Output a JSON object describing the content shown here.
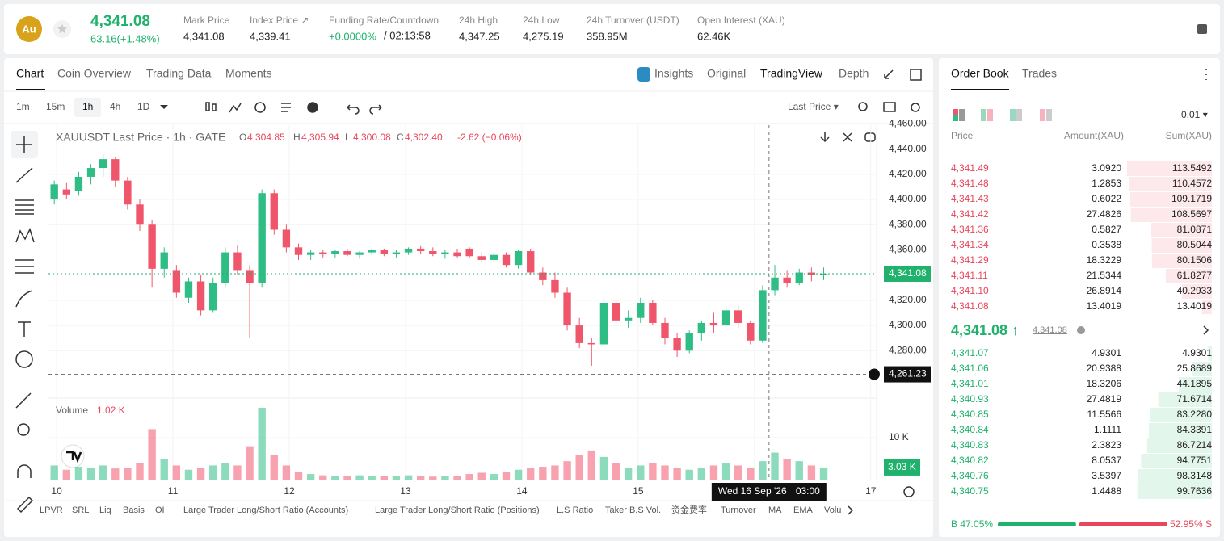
{
  "header": {
    "symbol": "Au",
    "price": "4,341.08",
    "change": "63.16(+1.48%)",
    "stats": [
      {
        "label": "Mark Price",
        "value": "4,341.08"
      },
      {
        "label": "Index Price ↗",
        "value": "4,339.41"
      },
      {
        "label": "Funding Rate/Countdown",
        "value": "+0.0000%",
        "extra": "/ 02:13:58"
      },
      {
        "label": "24h High",
        "value": "4,347.25"
      },
      {
        "label": "24h Low",
        "value": "4,275.19"
      },
      {
        "label": "24h Turnover (USDT)",
        "value": "358.95M"
      },
      {
        "label": "Open Interest (XAU)",
        "value": "62.46K"
      }
    ]
  },
  "tabs": [
    "Chart",
    "Coin Overview",
    "Trading Data",
    "Moments"
  ],
  "views": [
    "Insights",
    "Original",
    "TradingView",
    "Depth"
  ],
  "intervals": [
    "1m",
    "15m",
    "1h",
    "4h",
    "1D"
  ],
  "price_source": "Last Price ▾",
  "chart": {
    "type": "candlestick",
    "legend": "XAUUSDT Last Price · 1h · GATE",
    "ohlc": [
      {
        "key": "O",
        "value": "4,304.85"
      },
      {
        "key": "H",
        "value": "4,305.94"
      },
      {
        "key": "L",
        "value": "4,300.08"
      },
      {
        "key": "C",
        "value": "4,302.40"
      }
    ],
    "change": "-2.62 (−0.06%)",
    "up_color": "#2ebd85",
    "down_color": "#f0566b",
    "xlim": [
      9.93,
      17.05
    ],
    "xticks": [
      {
        "value": 10,
        "label": "10"
      },
      {
        "value": 11,
        "label": "11"
      },
      {
        "value": 12,
        "label": "12"
      },
      {
        "value": 13,
        "label": "13"
      },
      {
        "value": 14,
        "label": "14"
      },
      {
        "value": 15,
        "label": "15"
      },
      {
        "value": 16,
        "label": "16"
      },
      {
        "value": 17,
        "label": "17"
      }
    ],
    "ylim": [
      4243,
      4459
    ],
    "yticks": [
      {
        "value": 4280,
        "label": "4,280.00"
      },
      {
        "value": 4300,
        "label": "4,300.00"
      },
      {
        "value": 4320,
        "label": "4,320.00"
      },
      {
        "value": 4340,
        "label": "4,340.00"
      },
      {
        "value": 4360,
        "label": "4,360.00"
      },
      {
        "value": 4380,
        "label": "4,380.00"
      },
      {
        "value": 4400,
        "label": "4,400.00"
      },
      {
        "value": 4420,
        "label": "4,420.00"
      },
      {
        "value": 4440,
        "label": "4,440.00"
      },
      {
        "value": 4460,
        "label": "4,460.00"
      }
    ],
    "x": [
      9.98,
      10.085,
      10.19,
      10.295,
      10.4,
      10.505,
      10.61,
      10.715,
      10.82,
      10.925,
      11.03,
      11.135,
      11.24,
      11.345,
      11.45,
      11.555,
      11.66,
      11.765,
      11.87,
      11.975,
      12.08,
      12.185,
      12.29,
      12.395,
      12.5,
      12.605,
      12.71,
      12.815,
      12.92,
      13.025,
      13.13,
      13.235,
      13.34,
      13.445,
      13.55,
      13.655,
      13.76,
      13.865,
      13.97,
      14.075,
      14.18,
      14.285,
      14.39,
      14.495,
      14.6,
      14.705,
      14.81,
      14.915,
      15.02,
      15.125,
      15.23,
      15.335,
      15.44,
      15.545,
      15.65,
      15.755,
      15.86,
      15.965,
      16.07,
      16.175,
      16.28,
      16.385,
      16.49,
      16.595
    ],
    "candles": [
      [
        4400,
        4415,
        4396,
        4412
      ],
      [
        4408,
        4413,
        4400,
        4404
      ],
      [
        4407,
        4422,
        4403,
        4418
      ],
      [
        4418,
        4428,
        4412,
        4425
      ],
      [
        4425,
        4436,
        4418,
        4432
      ],
      [
        4432,
        4434,
        4410,
        4415
      ],
      [
        4415,
        4418,
        4392,
        4396
      ],
      [
        4396,
        4400,
        4375,
        4380
      ],
      [
        4380,
        4384,
        4330,
        4345
      ],
      [
        4345,
        4362,
        4338,
        4358
      ],
      [
        4344,
        4348,
        4322,
        4326
      ],
      [
        4322,
        4338,
        4318,
        4335
      ],
      [
        4335,
        4340,
        4308,
        4312
      ],
      [
        4312,
        4338,
        4310,
        4334
      ],
      [
        4334,
        4362,
        4330,
        4358
      ],
      [
        4358,
        4364,
        4340,
        4344
      ],
      [
        4344,
        4348,
        4290,
        4334
      ],
      [
        4334,
        4408,
        4330,
        4405
      ],
      [
        4405,
        4408,
        4372,
        4376
      ],
      [
        4376,
        4380,
        4358,
        4362
      ],
      [
        4362,
        4365,
        4352,
        4356
      ],
      [
        4356,
        4360,
        4352,
        4358
      ],
      [
        4358,
        4360,
        4354,
        4357
      ],
      [
        4357,
        4360,
        4354,
        4359
      ],
      [
        4359,
        4361,
        4355,
        4356
      ],
      [
        4356,
        4359,
        4353,
        4358
      ],
      [
        4358,
        4361,
        4356,
        4360
      ],
      [
        4360,
        4361,
        4355,
        4357
      ],
      [
        4357,
        4360,
        4354,
        4358
      ],
      [
        4358,
        4362,
        4356,
        4361
      ],
      [
        4361,
        4363,
        4357,
        4359
      ],
      [
        4359,
        4362,
        4355,
        4357
      ],
      [
        4357,
        4360,
        4353,
        4358
      ],
      [
        4358,
        4361,
        4354,
        4355
      ],
      [
        4361,
        4362,
        4354,
        4355
      ],
      [
        4355,
        4358,
        4350,
        4352
      ],
      [
        4352,
        4358,
        4350,
        4356
      ],
      [
        4356,
        4358,
        4346,
        4348
      ],
      [
        4348,
        4360,
        4345,
        4359
      ],
      [
        4359,
        4361,
        4340,
        4342
      ],
      [
        4342,
        4346,
        4332,
        4336
      ],
      [
        4336,
        4342,
        4322,
        4326
      ],
      [
        4326,
        4330,
        4296,
        4300
      ],
      [
        4300,
        4306,
        4282,
        4286
      ],
      [
        4286,
        4290,
        4268,
        4285
      ],
      [
        4285,
        4322,
        4283,
        4318
      ],
      [
        4318,
        4322,
        4300,
        4304
      ],
      [
        4304,
        4312,
        4298,
        4306
      ],
      [
        4306,
        4322,
        4302,
        4318
      ],
      [
        4318,
        4320,
        4300,
        4302
      ],
      [
        4302,
        4306,
        4285,
        4290
      ],
      [
        4290,
        4294,
        4275,
        4280
      ],
      [
        4280,
        4296,
        4278,
        4294
      ],
      [
        4294,
        4304,
        4288,
        4302
      ],
      [
        4302,
        4310,
        4294,
        4300
      ],
      [
        4300,
        4316,
        4296,
        4312
      ],
      [
        4312,
        4316,
        4298,
        4302
      ],
      [
        4302,
        4304,
        4285,
        4288
      ],
      [
        4288,
        4332,
        4286,
        4328
      ],
      [
        4328,
        4348,
        4324,
        4338
      ],
      [
        4338,
        4344,
        4330,
        4334
      ],
      [
        4334,
        4345,
        4332,
        4342
      ],
      [
        4342,
        4346,
        4335,
        4340
      ],
      [
        4340,
        4346,
        4336,
        4341
      ]
    ],
    "volume_title": "Volume",
    "volume_value": "1.02 K",
    "vlim": [
      0,
      19250
    ],
    "vticks": [
      {
        "value": 10000,
        "label": "10 K"
      }
    ],
    "volumes": [
      3500,
      2500,
      3200,
      3000,
      3500,
      2800,
      3000,
      4000,
      12000,
      5000,
      3500,
      2500,
      3000,
      3500,
      4000,
      3500,
      8000,
      17000,
      6000,
      3500,
      2000,
      1500,
      1200,
      1000,
      1000,
      1200,
      1000,
      1100,
      1000,
      1200,
      1000,
      900,
      1000,
      1100,
      1500,
      1800,
      1500,
      2000,
      2500,
      3000,
      3200,
      3500,
      4500,
      6000,
      7000,
      5500,
      4000,
      3000,
      3500,
      4000,
      3500,
      3000,
      2500,
      3000,
      3500,
      4000,
      3500,
      3000,
      4500,
      6500,
      5000,
      4500,
      3500,
      3030
    ],
    "last_price": {
      "value": 4341.08,
      "label": "4,341.08"
    },
    "last_volume": {
      "value": 3030,
      "label": "3.03 K"
    },
    "crosshair": {
      "x": 16.125,
      "date": "Wed 16 Sep '26",
      "time": "03:00",
      "price": {
        "value": 4261.23,
        "label": "4,261.23"
      }
    }
  },
  "indicators": [
    "LPVR",
    "SRL",
    "Liq",
    "Basis",
    "OI",
    "Large Trader Long/Short Ratio (Accounts)",
    "Large Trader Long/Short Ratio (Positions)",
    "L.S Ratio",
    "Taker B.S Vol.",
    "资金费率",
    "Turnover",
    "MA",
    "EMA",
    "Volu"
  ],
  "order_book": {
    "tabs": [
      "Order Book",
      "Trades"
    ],
    "precision": "0.01 ▾",
    "columns": [
      "Price",
      "Amount(XAU)",
      "Sum(XAU)"
    ],
    "asks": [
      {
        "price": "4,341.49",
        "amount": "3.0920",
        "sum": 113.5492
      },
      {
        "price": "4,341.48",
        "amount": "1.2853",
        "sum": 110.4572
      },
      {
        "price": "4,341.43",
        "amount": "0.6022",
        "sum": 109.1719
      },
      {
        "price": "4,341.42",
        "amount": "27.4826",
        "sum": 108.5697
      },
      {
        "price": "4,341.36",
        "amount": "0.5827",
        "sum": 81.0871
      },
      {
        "price": "4,341.34",
        "amount": "0.3538",
        "sum": 80.5044
      },
      {
        "price": "4,341.29",
        "amount": "18.3229",
        "sum": 80.1506
      },
      {
        "price": "4,341.11",
        "amount": "21.5344",
        "sum": 61.8277
      },
      {
        "price": "4,341.10",
        "amount": "26.8914",
        "sum": 40.2933
      },
      {
        "price": "4,341.08",
        "amount": "13.4019",
        "sum": 13.4019
      }
    ],
    "last": "4,341.08 ↑",
    "mark": "4,341.08",
    "bids": [
      {
        "price": "4,341.07",
        "amount": "4.9301",
        "sum": 4.9301
      },
      {
        "price": "4,341.06",
        "amount": "20.9388",
        "sum": 25.8689
      },
      {
        "price": "4,341.01",
        "amount": "18.3206",
        "sum": 44.1895
      },
      {
        "price": "4,340.93",
        "amount": "27.4819",
        "sum": 71.6714
      },
      {
        "price": "4,340.85",
        "amount": "11.5566",
        "sum": {
          "value": 83.228,
          "label": "83.2280"
        }
      },
      {
        "price": "4,340.84",
        "amount": "1.1111",
        "sum": 84.3391
      },
      {
        "price": "4,340.83",
        "amount": "2.3823",
        "sum": 86.7214
      },
      {
        "price": "4,340.82",
        "amount": "8.0537",
        "sum": 94.7751
      },
      {
        "price": "4,340.76",
        "amount": "3.5397",
        "sum": 98.3148
      },
      {
        "price": "4,340.75",
        "amount": "1.4488",
        "sum": 99.7636
      }
    ],
    "buy": {
      "value": 47.05,
      "label": "B 47.05%"
    },
    "sell": {
      "value": 52.95,
      "label": "52.95% S"
    }
  }
}
